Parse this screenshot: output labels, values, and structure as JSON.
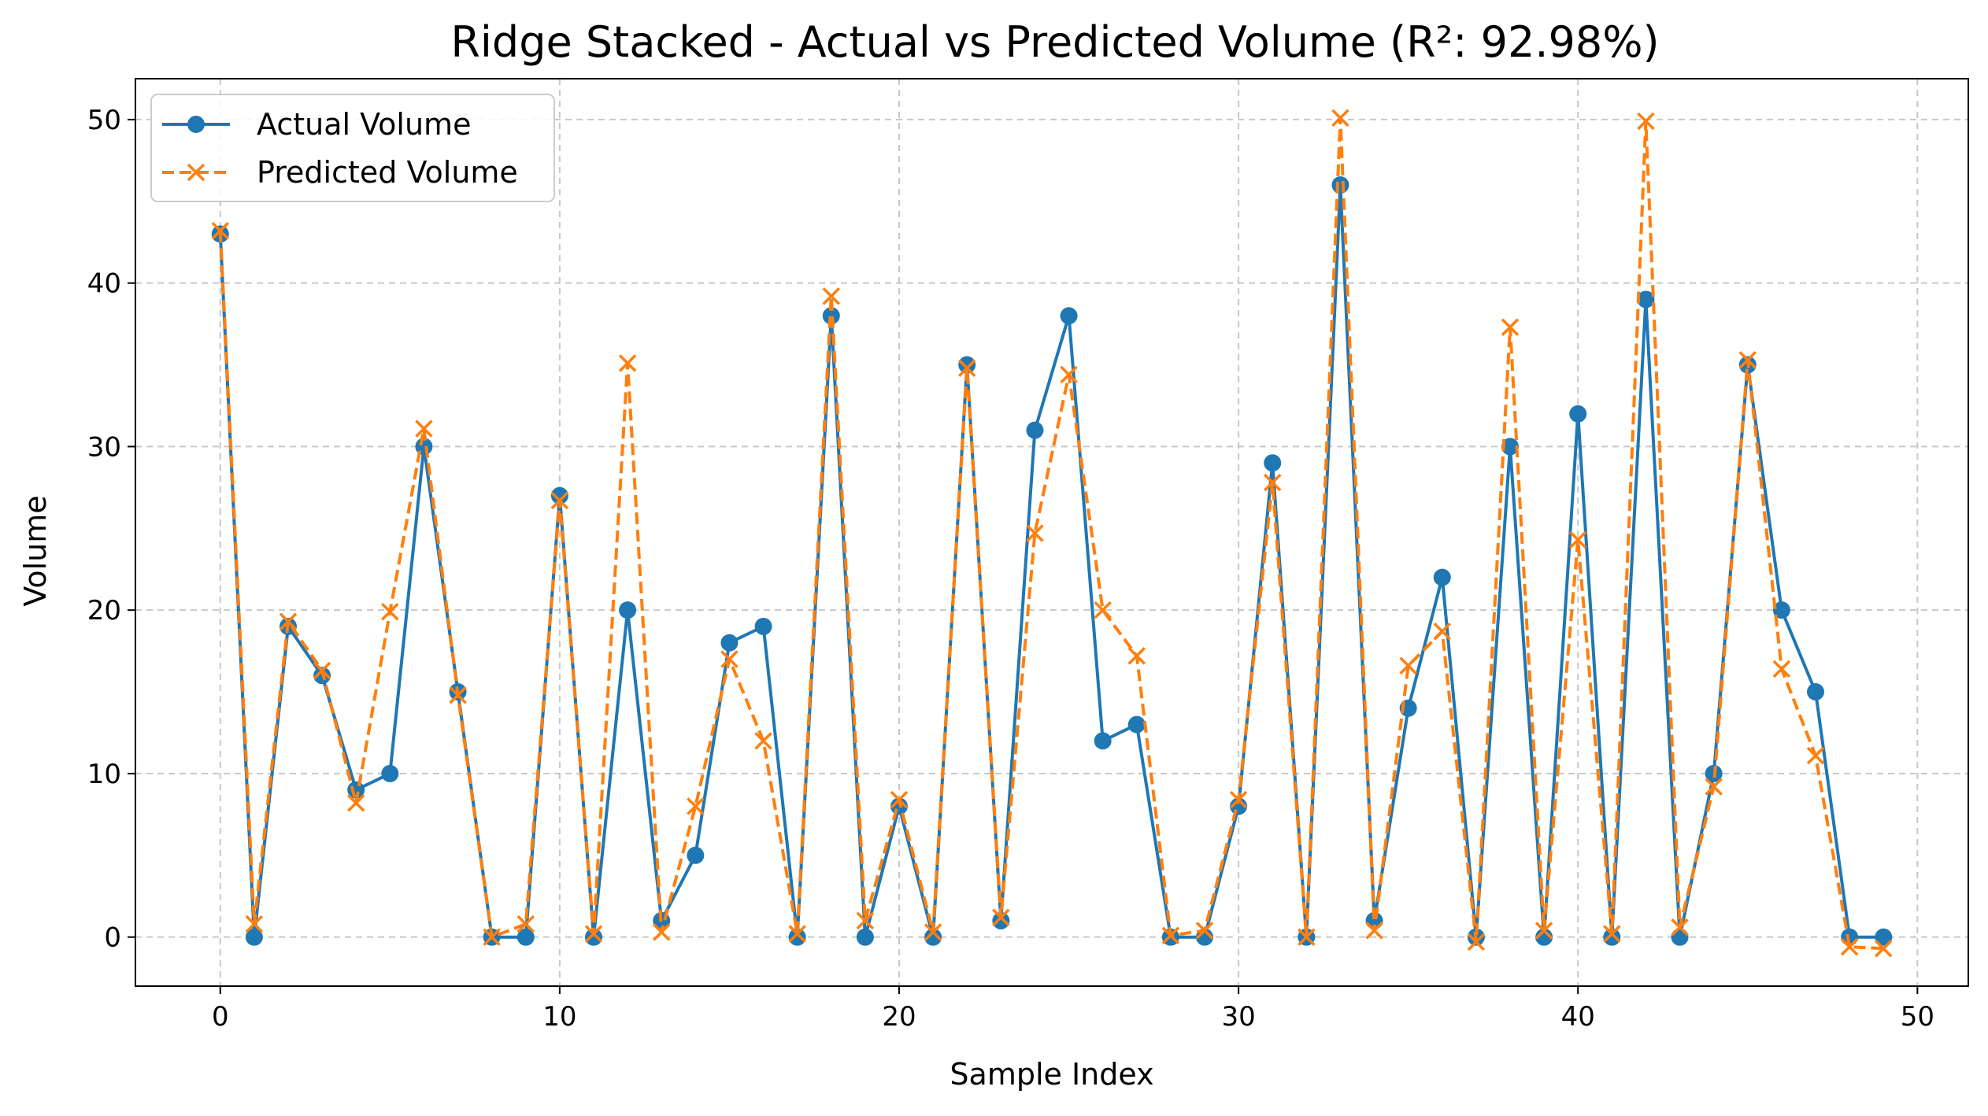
{
  "chart_data": {
    "type": "line",
    "title": "Ridge Stacked - Actual vs Predicted Volume (R²: 92.98%)",
    "xlabel": "Sample Index",
    "ylabel": "Volume",
    "xlim": [
      -2.5,
      51.5
    ],
    "ylim": [
      -3,
      52.5
    ],
    "xticks": [
      "0",
      "10",
      "20",
      "30",
      "40",
      "50"
    ],
    "yticks": [
      "0",
      "10",
      "20",
      "30",
      "40",
      "50"
    ],
    "grid": true,
    "legend_position": "top-left",
    "x": [
      0,
      1,
      2,
      3,
      4,
      5,
      6,
      7,
      8,
      9,
      10,
      11,
      12,
      13,
      14,
      15,
      16,
      17,
      18,
      19,
      20,
      21,
      22,
      23,
      24,
      25,
      26,
      27,
      28,
      29,
      30,
      31,
      32,
      33,
      34,
      35,
      36,
      37,
      38,
      39,
      40,
      41,
      42,
      43,
      44,
      45,
      46,
      47,
      48,
      49
    ],
    "series": [
      {
        "name": "Actual Volume",
        "color": "#1f77b4",
        "line_style": "solid",
        "marker": "circle",
        "values": [
          43,
          0,
          19,
          16,
          9,
          10,
          30,
          15,
          0,
          0,
          27,
          0,
          20,
          1,
          5,
          18,
          19,
          0,
          38,
          0,
          8,
          0,
          35,
          1,
          31,
          38,
          12,
          13,
          0,
          0,
          8,
          29,
          0,
          46,
          1,
          14,
          22,
          0,
          30,
          0,
          32,
          0,
          39,
          0,
          10,
          35,
          20,
          15,
          0,
          0
        ]
      },
      {
        "name": "Predicted Volume",
        "color": "#ff7f0e",
        "line_style": "dashed",
        "marker": "x",
        "values": [
          43.2,
          0.8,
          19.3,
          16.3,
          8.2,
          19.9,
          31.1,
          14.8,
          0,
          0.8,
          26.7,
          0.2,
          35.1,
          0.3,
          8,
          17,
          12,
          0.2,
          39.2,
          1,
          8.4,
          0.3,
          34.8,
          1.2,
          24.7,
          34.4,
          20,
          17.2,
          0.1,
          0.4,
          8.4,
          27.8,
          0,
          50.1,
          0.4,
          16.6,
          18.7,
          -0.3,
          37.3,
          0.4,
          24.3,
          0.2,
          49.9,
          0.6,
          9.2,
          35.3,
          16.4,
          11.1,
          -0.6,
          -0.7
        ]
      }
    ]
  }
}
